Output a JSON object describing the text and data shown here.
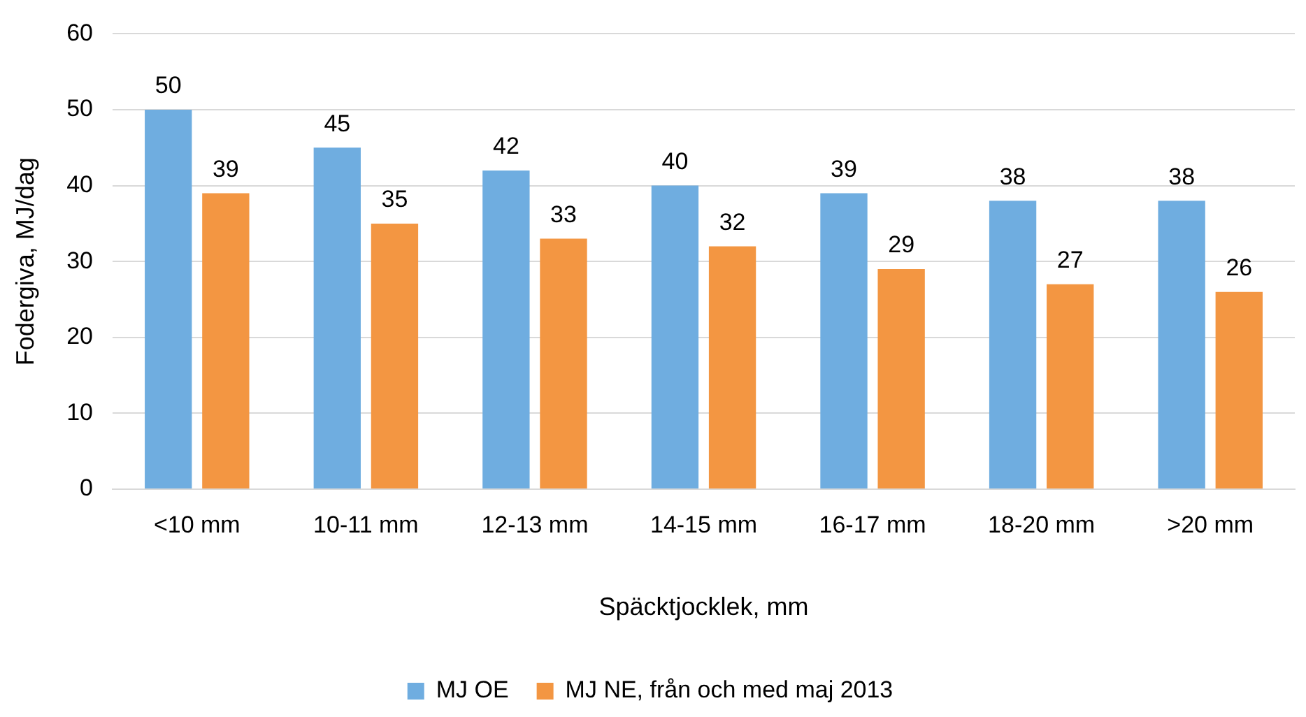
{
  "chart_data": {
    "type": "bar",
    "xlabel": "Späcktjocklek, mm",
    "ylabel": "Fodergiva, MJ/dag",
    "categories": [
      "<10 mm",
      "10-11 mm",
      "12-13 mm",
      "14-15 mm",
      "16-17 mm",
      "18-20 mm",
      ">20 mm"
    ],
    "series": [
      {
        "name": "MJ OE",
        "color": "#6fade0",
        "values": [
          50,
          45,
          42,
          40,
          39,
          38,
          38
        ]
      },
      {
        "name": "MJ NE, från och med maj 2013",
        "color": "#f39642",
        "values": [
          39,
          35,
          33,
          32,
          29,
          27,
          26
        ]
      }
    ],
    "ylim": [
      0,
      60
    ],
    "yticks": [
      0,
      10,
      20,
      30,
      40,
      50,
      60
    ],
    "grid": "y",
    "legend": "bottom",
    "data_labels": true
  }
}
